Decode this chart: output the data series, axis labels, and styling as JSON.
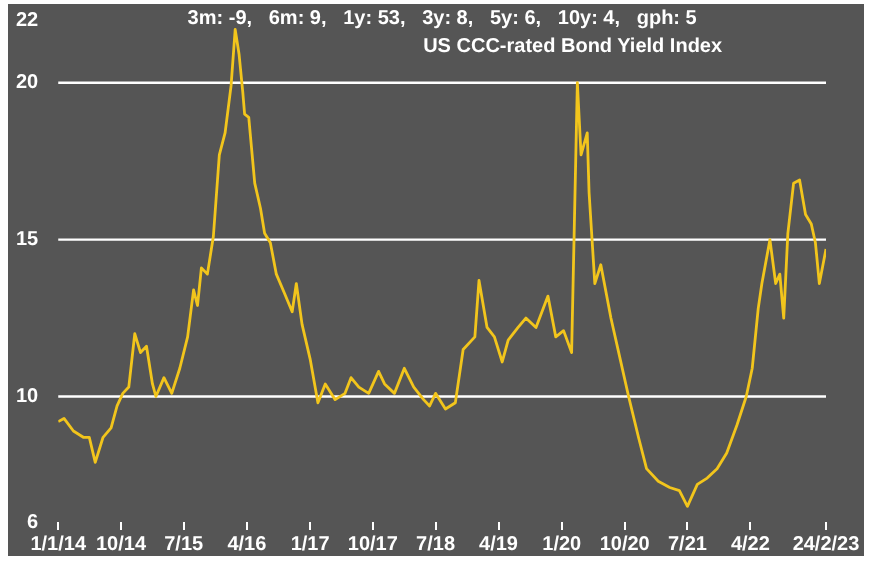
{
  "chart_data": {
    "type": "line",
    "title": "US CCC-rated Bond Yield Index",
    "subtitle": "3m: -9,   6m: 9,   1y: 53,   3y: 8,   5y: 6,   10y: 4,   gph: 5",
    "xlim": [
      "2014-01-01",
      "2023-02-24"
    ],
    "xticks": [
      {
        "value": "2014-01-01",
        "label": "1/1/14"
      },
      {
        "value": "2014-10-01",
        "label": "10/14"
      },
      {
        "value": "2015-07-01",
        "label": "7/15"
      },
      {
        "value": "2016-04-01",
        "label": "4/16"
      },
      {
        "value": "2017-01-01",
        "label": "1/17"
      },
      {
        "value": "2017-10-01",
        "label": "10/17"
      },
      {
        "value": "2018-07-01",
        "label": "7/18"
      },
      {
        "value": "2019-04-01",
        "label": "4/19"
      },
      {
        "value": "2020-01-01",
        "label": "1/20"
      },
      {
        "value": "2020-10-01",
        "label": "10/20"
      },
      {
        "value": "2021-07-01",
        "label": "7/21"
      },
      {
        "value": "2022-04-01",
        "label": "4/22"
      },
      {
        "value": "2023-02-24",
        "label": "24/2/23"
      }
    ],
    "ylim": [
      6,
      22
    ],
    "yticks": [
      6,
      10,
      15,
      20,
      22
    ],
    "ref_lines": [
      {
        "axis": "y",
        "value": 10,
        "color": "#ffffff"
      },
      {
        "axis": "y",
        "value": 15,
        "color": "#ffffff"
      },
      {
        "axis": "y",
        "value": 20,
        "color": "#ffffff"
      }
    ],
    "x": [
      "2014-01-01",
      "2014-01-26",
      "2014-03-08",
      "2014-04-20",
      "2014-05-16",
      "2014-06-11",
      "2014-07-15",
      "2014-08-19",
      "2014-09-14",
      "2014-10-09",
      "2014-11-04",
      "2014-11-30",
      "2014-12-25",
      "2015-01-20",
      "2015-02-15",
      "2015-03-02",
      "2015-04-06",
      "2015-05-10",
      "2015-06-14",
      "2015-07-18",
      "2015-08-13",
      "2015-08-30",
      "2015-09-16",
      "2015-10-12",
      "2015-11-07",
      "2015-12-03",
      "2015-12-28",
      "2016-01-23",
      "2016-02-10",
      "2016-02-27",
      "2016-03-14",
      "2016-03-22",
      "2016-04-09",
      "2016-05-05",
      "2016-05-30",
      "2016-06-17",
      "2016-07-12",
      "2016-08-07",
      "2016-09-11",
      "2016-10-15",
      "2016-11-02",
      "2016-11-27",
      "2017-01-01",
      "2017-02-04",
      "2017-03-08",
      "2017-04-20",
      "2017-06-02",
      "2017-06-28",
      "2017-08-01",
      "2017-09-13",
      "2017-10-26",
      "2017-11-21",
      "2018-01-03",
      "2018-02-15",
      "2018-03-28",
      "2018-05-10",
      "2018-06-05",
      "2018-07-01",
      "2018-08-13",
      "2018-09-25",
      "2018-10-29",
      "2018-12-19",
      "2019-01-06",
      "2019-02-10",
      "2019-03-14",
      "2019-04-17",
      "2019-05-13",
      "2019-06-25",
      "2019-07-29",
      "2019-09-11",
      "2019-11-02",
      "2019-12-06",
      "2020-01-09",
      "2020-02-13",
      "2020-03-09",
      "2020-03-25",
      "2020-04-21",
      "2020-04-29",
      "2020-05-24",
      "2020-06-19",
      "2020-08-02",
      "2020-09-05",
      "2020-10-18",
      "2020-11-30",
      "2021-01-04",
      "2021-02-24",
      "2021-04-15",
      "2021-05-27",
      "2021-07-01",
      "2021-08-13",
      "2021-09-25",
      "2021-11-07",
      "2021-12-19",
      "2022-02-02",
      "2022-03-14",
      "2022-04-09",
      "2022-05-05",
      "2022-05-21",
      "2022-06-25",
      "2022-07-20",
      "2022-08-07",
      "2022-08-24",
      "2022-09-11",
      "2022-10-06",
      "2022-11-01",
      "2022-11-27",
      "2022-12-22",
      "2023-01-09",
      "2023-01-26",
      "2023-02-24"
    ],
    "series": [
      {
        "color": "#f2c51c",
        "values": [
          9.2,
          9.3,
          8.9,
          8.7,
          8.7,
          7.9,
          8.7,
          9.0,
          9.7,
          10.1,
          10.3,
          12.0,
          11.4,
          11.6,
          10.4,
          10.0,
          10.6,
          10.1,
          10.9,
          11.9,
          13.4,
          12.9,
          14.1,
          13.9,
          15.1,
          17.7,
          18.4,
          19.9,
          21.7,
          20.9,
          19.7,
          19.0,
          18.9,
          16.8,
          16.0,
          15.2,
          14.9,
          13.9,
          13.3,
          12.7,
          13.6,
          12.3,
          11.2,
          9.8,
          10.4,
          9.9,
          10.1,
          10.6,
          10.3,
          10.1,
          10.8,
          10.4,
          10.1,
          10.9,
          10.3,
          9.9,
          9.7,
          10.1,
          9.6,
          9.8,
          11.5,
          11.9,
          13.7,
          12.2,
          11.9,
          11.1,
          11.8,
          12.2,
          12.5,
          12.2,
          13.2,
          11.9,
          12.1,
          11.4,
          20.0,
          17.7,
          18.4,
          16.5,
          13.6,
          14.2,
          12.5,
          11.4,
          10.0,
          8.7,
          7.7,
          7.3,
          7.1,
          7.0,
          6.5,
          7.2,
          7.4,
          7.7,
          8.2,
          9.1,
          10.0,
          10.9,
          12.8,
          13.6,
          15.0,
          13.6,
          13.9,
          12.5,
          15.2,
          16.8,
          16.9,
          15.8,
          15.5,
          14.9,
          13.6,
          14.7
        ]
      }
    ]
  }
}
